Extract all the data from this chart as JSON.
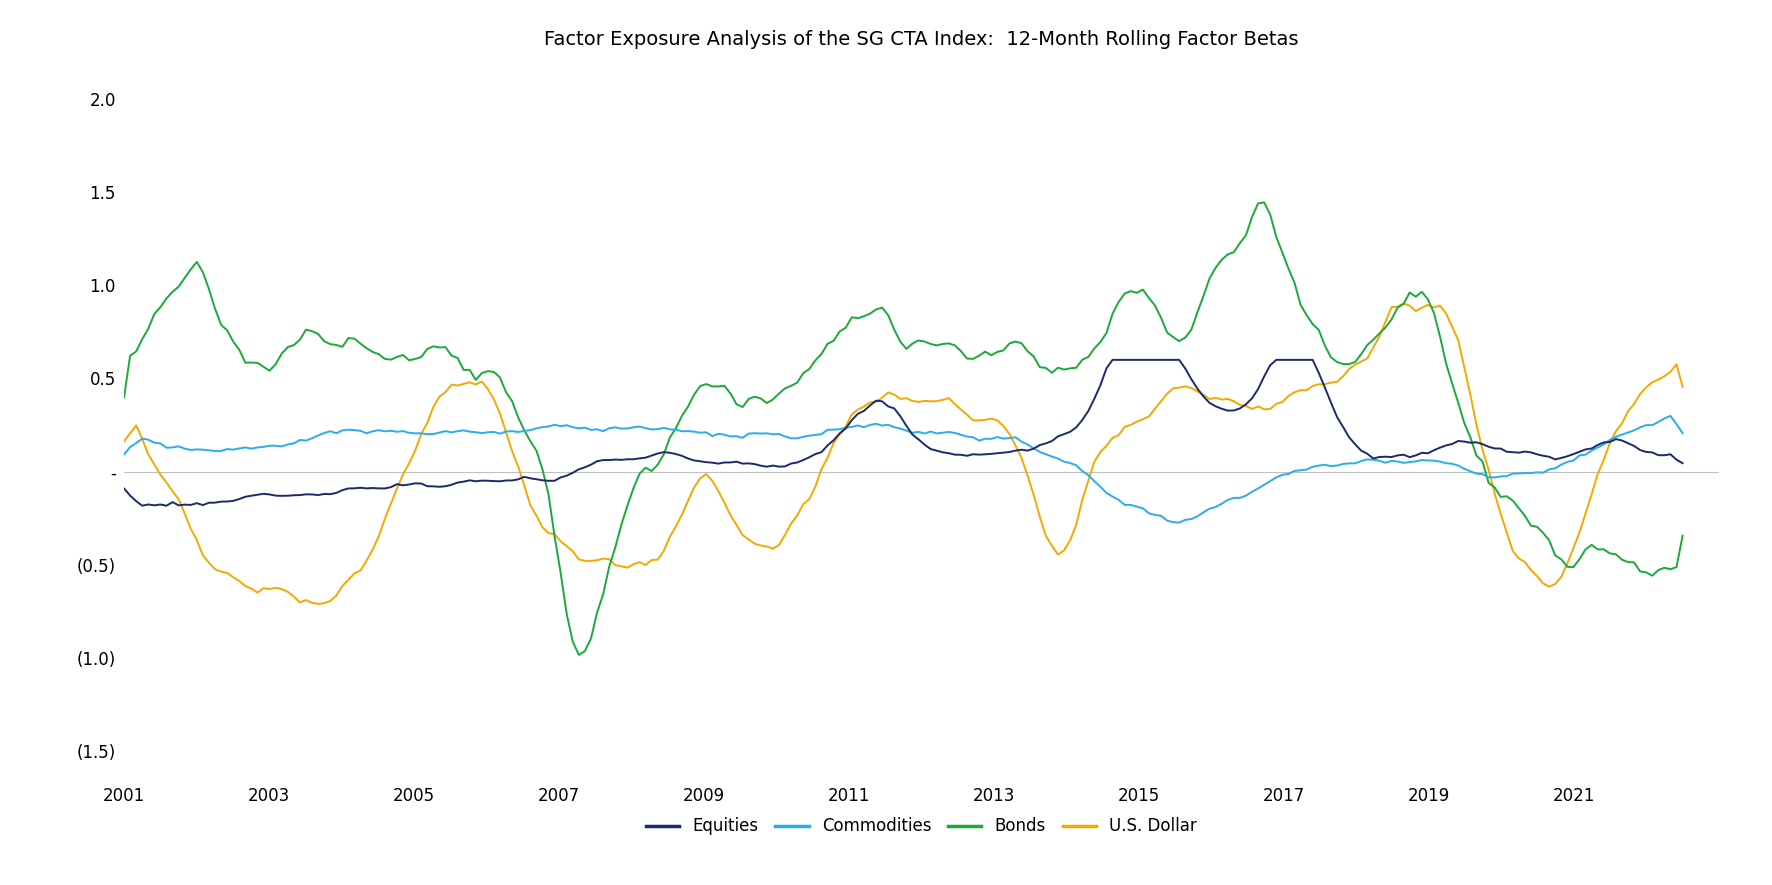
{
  "title": "Factor Exposure Analysis of the SG CTA Index:  12-Month Rolling Factor Betas",
  "colors": {
    "Equities": "#1b2a6b",
    "Commodities": "#29aee8",
    "Bonds": "#1aaa3a",
    "U.S. Dollar": "#f5a800"
  },
  "legend_labels": [
    "Equities",
    "Commodities",
    "Bonds",
    "U.S. Dollar"
  ],
  "ytick_vals": [
    -1.5,
    -1.0,
    -0.5,
    0.0,
    0.5,
    1.0,
    1.5,
    2.0
  ],
  "ytick_labels": [
    "(1.5)",
    "(1.0)",
    "(0.5)",
    "-",
    "0.5",
    "1.0",
    "1.5",
    "2.0"
  ],
  "xtick_years": [
    2001,
    2003,
    2005,
    2007,
    2009,
    2011,
    2013,
    2015,
    2017,
    2019,
    2021
  ],
  "background_color": "#ffffff",
  "line_width": 1.4,
  "title_fontsize": 14,
  "tick_fontsize": 12,
  "ylim_low": -1.65,
  "ylim_high": 2.2,
  "xlim_low": 2001.0,
  "xlim_high": 2023.0
}
